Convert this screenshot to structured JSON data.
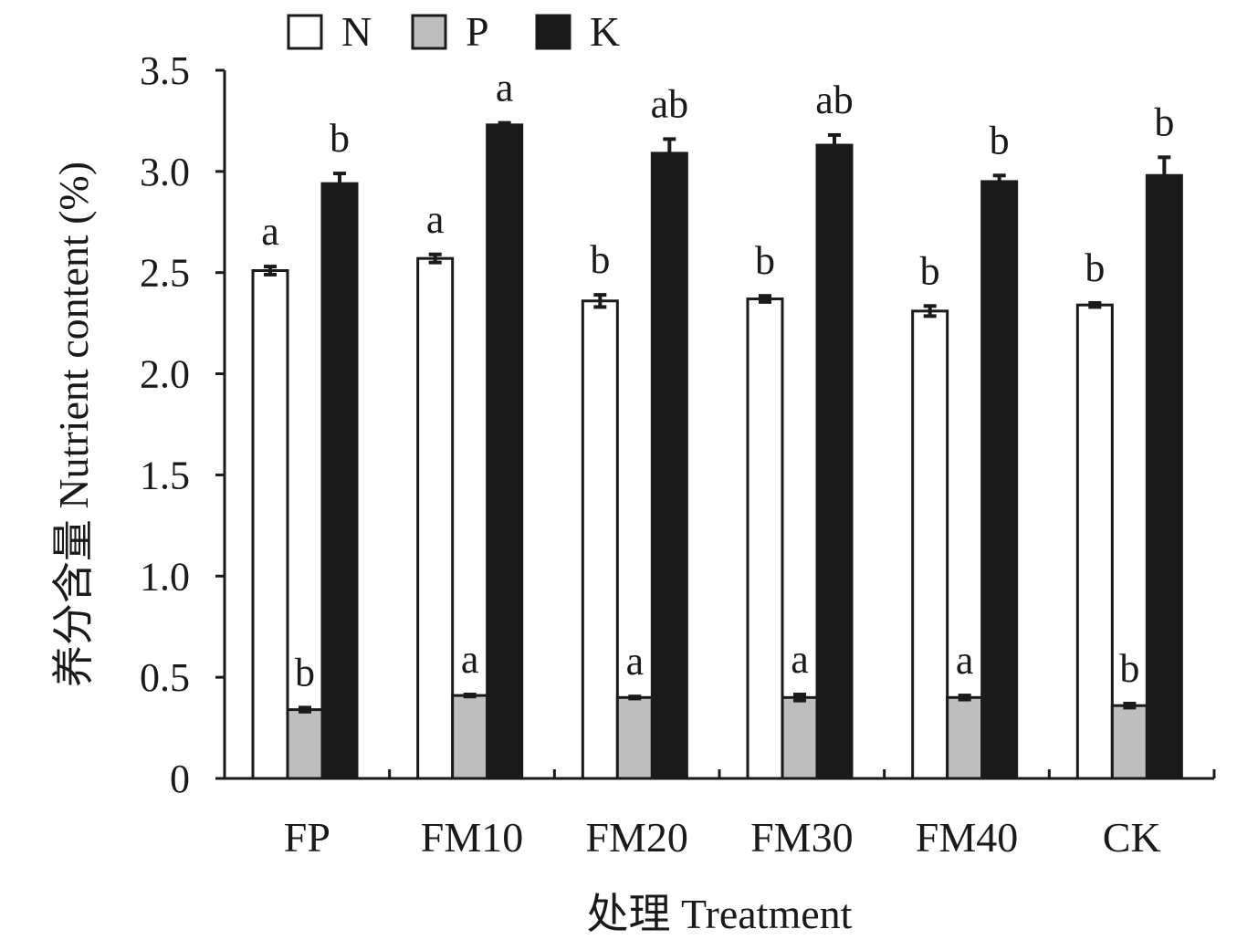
{
  "chart_data": {
    "type": "bar",
    "xlabel": "处理 Treatment",
    "ylabel": "养分含量 Nutrient content (%)",
    "ylim": [
      0,
      3.5
    ],
    "yticks": [
      0,
      0.5,
      1.0,
      1.5,
      2.0,
      2.5,
      3.0,
      3.5
    ],
    "ytick_labels": [
      "0",
      "0.5",
      "1.0",
      "1.5",
      "2.0",
      "2.5",
      "3.0",
      "3.5"
    ],
    "categories": [
      "FP",
      "FM10",
      "FM20",
      "FM30",
      "FM40",
      "CK"
    ],
    "legend_position": "top-left",
    "grid": false,
    "series": [
      {
        "name": "N",
        "color": "#ffffff",
        "values": [
          2.51,
          2.57,
          2.36,
          2.37,
          2.31,
          2.34
        ],
        "errors": [
          0.02,
          0.02,
          0.03,
          0.015,
          0.025,
          0.01
        ],
        "labels": [
          "a",
          "a",
          "b",
          "b",
          "b",
          "b"
        ]
      },
      {
        "name": "P",
        "color": "#bebebe",
        "values": [
          0.34,
          0.41,
          0.4,
          0.4,
          0.4,
          0.36
        ],
        "errors": [
          0.01,
          0.005,
          0.005,
          0.015,
          0.01,
          0.01
        ],
        "labels": [
          "b",
          "a",
          "a",
          "a",
          "a",
          "b"
        ]
      },
      {
        "name": "K",
        "color": "#1a1a1a",
        "values": [
          2.94,
          3.23,
          3.09,
          3.13,
          2.95,
          2.98
        ],
        "errors": [
          0.05,
          0.01,
          0.07,
          0.05,
          0.03,
          0.09
        ],
        "labels": [
          "b",
          "a",
          "ab",
          "ab",
          "b",
          "b"
        ]
      }
    ]
  }
}
